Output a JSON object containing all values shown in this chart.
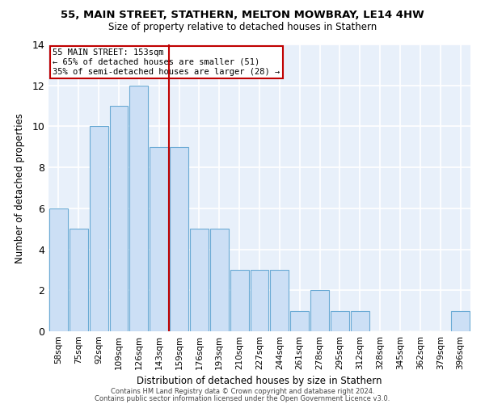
{
  "title1": "55, MAIN STREET, STATHERN, MELTON MOWBRAY, LE14 4HW",
  "title2": "Size of property relative to detached houses in Stathern",
  "xlabel": "Distribution of detached houses by size in Stathern",
  "ylabel": "Number of detached properties",
  "bar_labels": [
    "58sqm",
    "75sqm",
    "92sqm",
    "109sqm",
    "126sqm",
    "143sqm",
    "159sqm",
    "176sqm",
    "193sqm",
    "210sqm",
    "227sqm",
    "244sqm",
    "261sqm",
    "278sqm",
    "295sqm",
    "312sqm",
    "328sqm",
    "345sqm",
    "362sqm",
    "379sqm",
    "396sqm"
  ],
  "bar_values": [
    6,
    5,
    10,
    11,
    12,
    9,
    9,
    5,
    5,
    3,
    3,
    3,
    1,
    2,
    1,
    1,
    0,
    0,
    0,
    0,
    1
  ],
  "bar_color": "#ccdff5",
  "bar_edge_color": "#6aaad4",
  "vline_x": 6.0,
  "vline_color": "#c00000",
  "annotation_title": "55 MAIN STREET: 153sqm",
  "annotation_line1": "← 65% of detached houses are smaller (51)",
  "annotation_line2": "35% of semi-detached houses are larger (28) →",
  "annotation_box_color": "#c00000",
  "ylim": [
    0,
    14
  ],
  "yticks": [
    0,
    2,
    4,
    6,
    8,
    10,
    12,
    14
  ],
  "footer1": "Contains HM Land Registry data © Crown copyright and database right 2024.",
  "footer2": "Contains public sector information licensed under the Open Government Licence v3.0.",
  "bg_color": "#e8f0fa",
  "fig_bg_color": "#ffffff",
  "grid_color": "#ffffff"
}
